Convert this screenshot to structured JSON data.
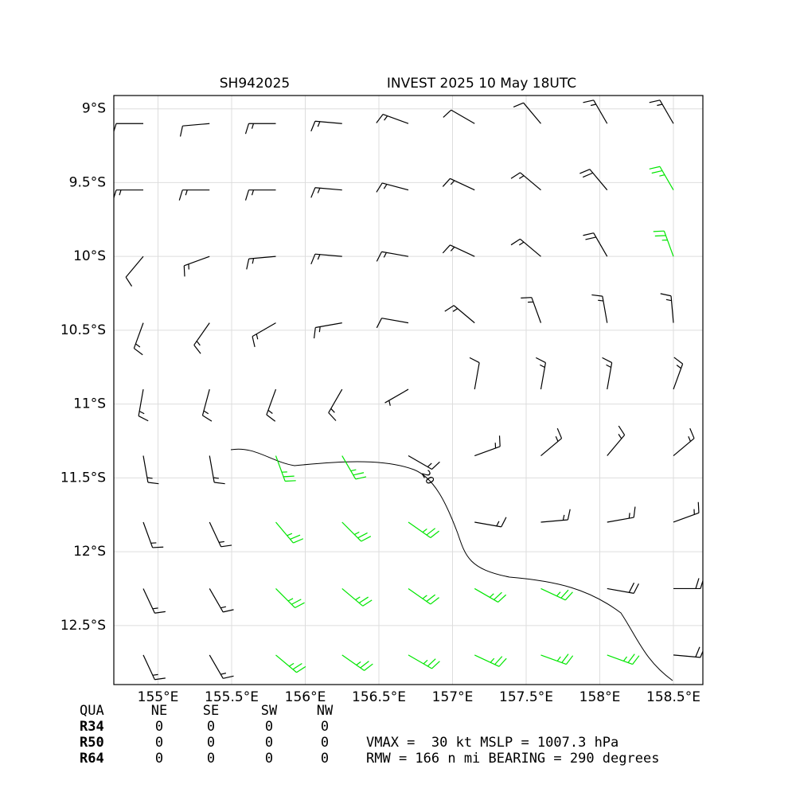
{
  "chart_data": {
    "type": "barbs",
    "title_left": "SH942025",
    "title_right": "INVEST 2025 10 May 18UTC",
    "xlim": [
      154.7,
      158.7
    ],
    "ylim": [
      -12.9,
      -8.91
    ],
    "xticks": [
      {
        "value": 155,
        "label": "155°E"
      },
      {
        "value": 155.5,
        "label": "155.5°E"
      },
      {
        "value": 156,
        "label": "156°E"
      },
      {
        "value": 156.5,
        "label": "156.5°E"
      },
      {
        "value": 157,
        "label": "157°E"
      },
      {
        "value": 157.5,
        "label": "157.5°E"
      },
      {
        "value": 158,
        "label": "158°E"
      },
      {
        "value": 158.5,
        "label": "158.5°E"
      }
    ],
    "yticks": [
      {
        "value": -9,
        "label": "9°S"
      },
      {
        "value": -9.5,
        "label": "9.5°S"
      },
      {
        "value": -10,
        "label": "10°S"
      },
      {
        "value": -10.5,
        "label": "10.5°S"
      },
      {
        "value": -11,
        "label": "11°S"
      },
      {
        "value": -11.5,
        "label": "11.5°S"
      },
      {
        "value": -12,
        "label": "12°S"
      },
      {
        "value": -12.5,
        "label": "12.5°S"
      }
    ],
    "grid": true,
    "contour_label": "20",
    "series": [
      {
        "color": "#000000",
        "points": [
          [
            154.9,
            -9.1,
            10,
            270
          ],
          [
            155.35,
            -9.1,
            10,
            265
          ],
          [
            155.8,
            -9.1,
            15,
            270
          ],
          [
            156.25,
            -9.1,
            15,
            275
          ],
          [
            156.7,
            -9.1,
            15,
            290
          ],
          [
            157.15,
            -9.1,
            10,
            300
          ],
          [
            157.6,
            -9.1,
            10,
            320
          ],
          [
            158.05,
            -9.1,
            15,
            330
          ],
          [
            158.5,
            -9.1,
            15,
            330
          ],
          [
            154.9,
            -9.55,
            15,
            270
          ],
          [
            155.35,
            -9.55,
            15,
            270
          ],
          [
            155.8,
            -9.55,
            15,
            270
          ],
          [
            156.25,
            -9.55,
            15,
            275
          ],
          [
            156.7,
            -9.55,
            15,
            285
          ],
          [
            157.15,
            -9.55,
            15,
            295
          ],
          [
            157.6,
            -9.55,
            15,
            310
          ],
          [
            158.05,
            -9.55,
            20,
            320
          ],
          [
            154.9,
            -10.0,
            10,
            220
          ],
          [
            155.35,
            -10.0,
            15,
            250
          ],
          [
            155.8,
            -10.0,
            15,
            265
          ],
          [
            156.25,
            -10.0,
            15,
            275
          ],
          [
            156.7,
            -10.0,
            15,
            280
          ],
          [
            157.15,
            -10.0,
            15,
            295
          ],
          [
            157.6,
            -10.0,
            15,
            310
          ],
          [
            158.05,
            -10.0,
            20,
            330
          ],
          [
            154.9,
            -10.45,
            15,
            200
          ],
          [
            155.35,
            -10.45,
            15,
            215
          ],
          [
            155.8,
            -10.45,
            15,
            240
          ],
          [
            156.25,
            -10.45,
            15,
            260
          ],
          [
            156.7,
            -10.45,
            10,
            280
          ],
          [
            157.15,
            -10.45,
            15,
            310
          ],
          [
            157.6,
            -10.45,
            15,
            340
          ],
          [
            158.05,
            -10.45,
            15,
            350
          ],
          [
            158.5,
            -10.45,
            15,
            355
          ],
          [
            154.9,
            -10.9,
            15,
            190
          ],
          [
            155.35,
            -10.9,
            15,
            195
          ],
          [
            155.8,
            -10.9,
            15,
            200
          ],
          [
            156.25,
            -10.9,
            15,
            210
          ],
          [
            156.7,
            -10.9,
            5,
            240
          ],
          [
            157.15,
            -10.9,
            10,
            10
          ],
          [
            157.6,
            -10.9,
            15,
            10
          ],
          [
            158.05,
            -10.9,
            15,
            10
          ],
          [
            158.5,
            -10.9,
            15,
            20
          ],
          [
            154.9,
            -11.35,
            15,
            170
          ],
          [
            155.35,
            -11.35,
            15,
            170
          ],
          [
            156.7,
            -11.35,
            15,
            120
          ],
          [
            157.15,
            -11.35,
            15,
            70
          ],
          [
            157.6,
            -11.35,
            15,
            50
          ],
          [
            158.05,
            -11.35,
            15,
            40
          ],
          [
            158.5,
            -11.35,
            15,
            50
          ],
          [
            154.9,
            -11.8,
            15,
            160
          ],
          [
            155.35,
            -11.8,
            15,
            155
          ],
          [
            157.15,
            -11.8,
            15,
            100
          ],
          [
            157.6,
            -11.8,
            15,
            85
          ],
          [
            158.05,
            -11.8,
            15,
            80
          ],
          [
            158.5,
            -11.8,
            15,
            70
          ],
          [
            154.9,
            -12.25,
            15,
            155
          ],
          [
            155.35,
            -12.25,
            15,
            150
          ],
          [
            158.05,
            -12.25,
            20,
            100
          ],
          [
            158.5,
            -12.25,
            20,
            90
          ],
          [
            154.9,
            -12.7,
            15,
            155
          ],
          [
            155.35,
            -12.7,
            15,
            150
          ],
          [
            158.5,
            -12.7,
            20,
            95
          ]
        ]
      },
      {
        "color": "#00e600",
        "points": [
          [
            158.5,
            -9.55,
            25,
            330
          ],
          [
            158.5,
            -10.0,
            25,
            340
          ],
          [
            155.8,
            -11.35,
            25,
            160
          ],
          [
            156.25,
            -11.35,
            25,
            150
          ],
          [
            155.8,
            -11.8,
            25,
            140
          ],
          [
            156.25,
            -11.8,
            25,
            135
          ],
          [
            156.7,
            -11.8,
            25,
            125
          ],
          [
            155.8,
            -12.25,
            25,
            135
          ],
          [
            156.25,
            -12.25,
            25,
            130
          ],
          [
            156.7,
            -12.25,
            25,
            125
          ],
          [
            157.15,
            -12.25,
            25,
            120
          ],
          [
            157.6,
            -12.25,
            25,
            115
          ],
          [
            155.8,
            -12.7,
            25,
            130
          ],
          [
            156.25,
            -12.7,
            25,
            125
          ],
          [
            156.7,
            -12.7,
            25,
            120
          ],
          [
            157.15,
            -12.7,
            25,
            115
          ],
          [
            157.6,
            -12.7,
            25,
            110
          ],
          [
            158.05,
            -12.7,
            25,
            110
          ]
        ]
      }
    ]
  },
  "table": {
    "header": [
      "QUA",
      "NE",
      "SE",
      "SW",
      "NW"
    ],
    "rows": [
      [
        "R34",
        "0",
        "0",
        "0",
        "0"
      ],
      [
        "R50",
        "0",
        "0",
        "0",
        "0"
      ],
      [
        "R64",
        "0",
        "0",
        "0",
        "0"
      ]
    ],
    "info": [
      "VMAX =  30 kt MSLP = 1007.3 hPa",
      "RMW = 166 n mi BEARING = 290 degrees"
    ]
  }
}
